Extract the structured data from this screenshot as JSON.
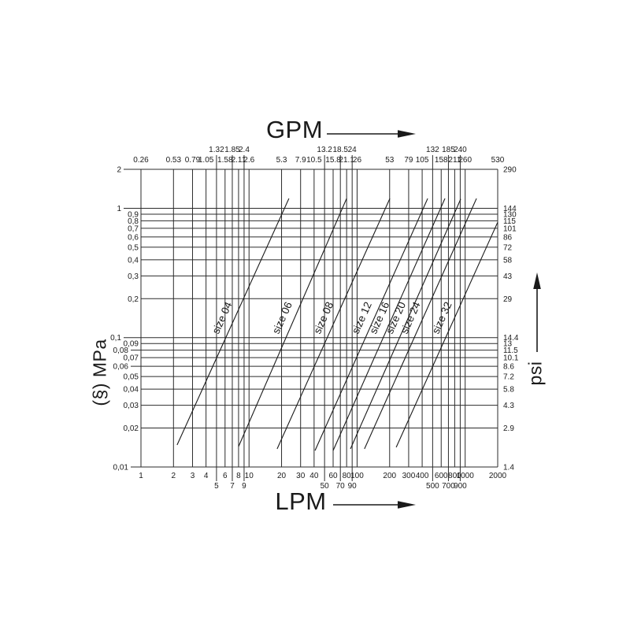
{
  "colors": {
    "ink": "#1a1a1a",
    "grid": "#2b2b2b",
    "background": "#ffffff"
  },
  "chart_data": {
    "type": "line",
    "title": "",
    "x_axis": {
      "top_label": "GPM",
      "bottom_label": "LPM",
      "scale": "log",
      "range_lpm": [
        1,
        2000
      ],
      "range_gpm": [
        0.26,
        530
      ]
    },
    "y_axis": {
      "left_label": "(§) MPa",
      "right_label": "psi",
      "scale": "log",
      "range_mpa": [
        0.01,
        2
      ],
      "range_psi": [
        1.4,
        290
      ]
    },
    "grid": true,
    "legend_position": "labels-on-lines",
    "x_ticks": [
      {
        "lpm": 1,
        "lpm_label": "1",
        "gpm_label": "0.26",
        "staggered": false
      },
      {
        "lpm": 2,
        "lpm_label": "2",
        "gpm_label": "0.53",
        "staggered": false
      },
      {
        "lpm": 3,
        "lpm_label": "3",
        "gpm_label": "0.79",
        "staggered": false
      },
      {
        "lpm": 4,
        "lpm_label": "4",
        "gpm_label": "1.05",
        "staggered": false
      },
      {
        "lpm": 5,
        "lpm_label": "5",
        "gpm_label": "1.32",
        "staggered": true
      },
      {
        "lpm": 6,
        "lpm_label": "6",
        "gpm_label": "1.58",
        "staggered": false
      },
      {
        "lpm": 7,
        "lpm_label": "7",
        "gpm_label": "1.85",
        "staggered": true
      },
      {
        "lpm": 8,
        "lpm_label": "8",
        "gpm_label": "2.11",
        "staggered": false
      },
      {
        "lpm": 9,
        "lpm_label": "9",
        "gpm_label": "2.4",
        "staggered": true
      },
      {
        "lpm": 10,
        "lpm_label": "10",
        "gpm_label": "2.6",
        "staggered": false
      },
      {
        "lpm": 20,
        "lpm_label": "20",
        "gpm_label": "5.3",
        "staggered": false
      },
      {
        "lpm": 30,
        "lpm_label": "30",
        "gpm_label": "7.9",
        "staggered": false
      },
      {
        "lpm": 40,
        "lpm_label": "40",
        "gpm_label": "10.5",
        "staggered": false
      },
      {
        "lpm": 50,
        "lpm_label": "50",
        "gpm_label": "13.2",
        "staggered": true
      },
      {
        "lpm": 60,
        "lpm_label": "60",
        "gpm_label": "15.8",
        "staggered": false
      },
      {
        "lpm": 70,
        "lpm_label": "70",
        "gpm_label": "18.5",
        "staggered": true
      },
      {
        "lpm": 80,
        "lpm_label": "80",
        "gpm_label": "21.1",
        "staggered": false
      },
      {
        "lpm": 90,
        "lpm_label": "90",
        "gpm_label": "24",
        "staggered": true
      },
      {
        "lpm": 100,
        "lpm_label": "100",
        "gpm_label": "26",
        "staggered": false
      },
      {
        "lpm": 200,
        "lpm_label": "200",
        "gpm_label": "53",
        "staggered": false
      },
      {
        "lpm": 300,
        "lpm_label": "300",
        "gpm_label": "79",
        "staggered": false
      },
      {
        "lpm": 400,
        "lpm_label": "400",
        "gpm_label": "105",
        "staggered": false
      },
      {
        "lpm": 500,
        "lpm_label": "500",
        "gpm_label": "132",
        "staggered": true
      },
      {
        "lpm": 600,
        "lpm_label": "600",
        "gpm_label": "158",
        "staggered": false
      },
      {
        "lpm": 700,
        "lpm_label": "700",
        "gpm_label": "185",
        "staggered": true
      },
      {
        "lpm": 800,
        "lpm_label": "800",
        "gpm_label": "211",
        "staggered": false
      },
      {
        "lpm": 900,
        "lpm_label": "900",
        "gpm_label": "240",
        "staggered": true
      },
      {
        "lpm": 1000,
        "lpm_label": "1000",
        "gpm_label": "260",
        "staggered": false
      },
      {
        "lpm": 2000,
        "lpm_label": "2000",
        "gpm_label": "530",
        "staggered": false
      }
    ],
    "y_ticks": [
      {
        "mpa": 2,
        "mpa_label": "2",
        "psi_label": "290",
        "tier": 1
      },
      {
        "mpa": 1,
        "mpa_label": "1",
        "psi_label": "144",
        "tier": 1
      },
      {
        "mpa": 0.9,
        "mpa_label": "0,9",
        "psi_label": "130",
        "tier": 0
      },
      {
        "mpa": 0.8,
        "mpa_label": "0,8",
        "psi_label": "115",
        "tier": 0
      },
      {
        "mpa": 0.7,
        "mpa_label": "0,7",
        "psi_label": "101",
        "tier": 0
      },
      {
        "mpa": 0.6,
        "mpa_label": "0,6",
        "psi_label": "86",
        "tier": 0
      },
      {
        "mpa": 0.5,
        "mpa_label": "0,5",
        "psi_label": "72",
        "tier": 0
      },
      {
        "mpa": 0.4,
        "mpa_label": "0,4",
        "psi_label": "58",
        "tier": 0
      },
      {
        "mpa": 0.3,
        "mpa_label": "0,3",
        "psi_label": "43",
        "tier": 0
      },
      {
        "mpa": 0.2,
        "mpa_label": "0,2",
        "psi_label": "29",
        "tier": 0
      },
      {
        "mpa": 0.1,
        "mpa_label": "0,1",
        "psi_label": "14.4",
        "tier": 1
      },
      {
        "mpa": 0.09,
        "mpa_label": "0,09",
        "psi_label": "13",
        "tier": 0
      },
      {
        "mpa": 0.08,
        "mpa_label": "0,08",
        "psi_label": "11.5",
        "tier": 2
      },
      {
        "mpa": 0.07,
        "mpa_label": "0,07",
        "psi_label": "10.1",
        "tier": 0
      },
      {
        "mpa": 0.06,
        "mpa_label": "0,06",
        "psi_label": "8.6",
        "tier": 2
      },
      {
        "mpa": 0.05,
        "mpa_label": "0,05",
        "psi_label": "7.2",
        "tier": 0
      },
      {
        "mpa": 0.04,
        "mpa_label": "0,04",
        "psi_label": "5.8",
        "tier": 0
      },
      {
        "mpa": 0.03,
        "mpa_label": "0,03",
        "psi_label": "4.3",
        "tier": 0
      },
      {
        "mpa": 0.02,
        "mpa_label": "0,02",
        "psi_label": "2.9",
        "tier": 0
      },
      {
        "mpa": 0.01,
        "mpa_label": "0,01",
        "psi_label": "1.4",
        "tier": 2
      }
    ],
    "series": [
      {
        "name": "size 04",
        "points_lpm_mpa": [
          [
            2.16,
            0.0148
          ],
          [
            23.4,
            1.19
          ]
        ]
      },
      {
        "name": "size 06",
        "points_lpm_mpa": [
          [
            8.0,
            0.0144
          ],
          [
            80,
            1.19
          ]
        ]
      },
      {
        "name": "size 08",
        "points_lpm_mpa": [
          [
            18.2,
            0.0138
          ],
          [
            201,
            1.19
          ]
        ]
      },
      {
        "name": "size 12",
        "points_lpm_mpa": [
          [
            40.8,
            0.0134
          ],
          [
            450,
            1.19
          ]
        ]
      },
      {
        "name": "size 16",
        "points_lpm_mpa": [
          [
            60,
            0.0134
          ],
          [
            650,
            1.19
          ]
        ]
      },
      {
        "name": "size 20",
        "points_lpm_mpa": [
          [
            86.8,
            0.0138
          ],
          [
            910,
            1.18
          ]
        ]
      },
      {
        "name": "size 24",
        "points_lpm_mpa": [
          [
            117,
            0.0138
          ],
          [
            1273,
            1.19
          ]
        ]
      },
      {
        "name": "size 32",
        "points_lpm_mpa": [
          [
            230,
            0.0142
          ],
          [
            2000,
            0.78
          ]
        ]
      }
    ]
  }
}
